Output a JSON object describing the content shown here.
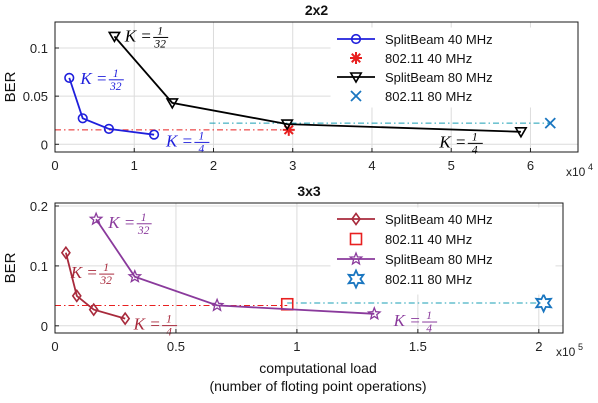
{
  "xlabel_line1": "computational load",
  "xlabel_line2": "(number of floting point operations)",
  "chart_data": [
    {
      "type": "line",
      "title": "2x2",
      "ylabel": "BER",
      "xlim": [
        0,
        6.6
      ],
      "ylim": [
        -0.008,
        0.127
      ],
      "xticks": [
        0,
        1,
        2,
        3,
        4,
        5,
        6
      ],
      "xtick_labels": [
        "0",
        "1",
        "2",
        "3",
        "4",
        "5",
        "6"
      ],
      "yticks": [
        0,
        0.05,
        0.1
      ],
      "ytick_labels": [
        "0",
        "0.05",
        "0.1"
      ],
      "x_multiplier": "x10",
      "x_exponent": "4",
      "grid": true,
      "legend_position": "top-right",
      "series": [
        {
          "name": "SplitBeam 40 MHz",
          "color": "#1f1fdc",
          "marker": "circle",
          "line": "solid",
          "x": [
            0.18,
            0.35,
            0.68,
            1.25
          ],
          "y": [
            0.069,
            0.027,
            0.016,
            0.01
          ]
        },
        {
          "name": "802.11 40 MHz",
          "color": "#e82020",
          "marker": "asterisk",
          "line": "none",
          "x": [
            2.95
          ],
          "y": [
            0.015
          ]
        },
        {
          "name": "SplitBeam 80 MHz",
          "color": "#000000",
          "marker": "triangle-down",
          "line": "solid",
          "x": [
            0.75,
            1.48,
            2.93,
            5.88
          ],
          "y": [
            0.112,
            0.043,
            0.021,
            0.013
          ]
        },
        {
          "name": "802.11 80 MHz",
          "color": "#1a76c0",
          "marker": "x",
          "line": "none",
          "x": [
            6.25
          ],
          "y": [
            0.022
          ]
        }
      ],
      "reference_lines": [
        {
          "color": "#e82020",
          "y": 0.015,
          "x": [
            0,
            2.95
          ]
        },
        {
          "color": "#1a9fb5",
          "y": 0.022,
          "x": [
            1.95,
            6.25
          ]
        }
      ],
      "annotations": [
        {
          "prefix": "K",
          "num": "1",
          "den": "32",
          "color": "#1f1fdc",
          "x": 0.32,
          "y": 0.068
        },
        {
          "prefix": "K",
          "num": "1",
          "den": "4",
          "color": "#1f1fdc",
          "x": 1.4,
          "y": 0.003
        },
        {
          "prefix": "K",
          "num": "1",
          "den": "32",
          "color": "#000000",
          "x": 0.88,
          "y": 0.112
        },
        {
          "prefix": "K",
          "num": "1",
          "den": "4",
          "color": "#000000",
          "x": 4.85,
          "y": 0.002
        }
      ]
    },
    {
      "type": "line",
      "title": "3x3",
      "ylabel": "BER",
      "xlim": [
        0,
        2.1
      ],
      "ylim": [
        -0.012,
        0.205
      ],
      "xticks": [
        0,
        0.5,
        1,
        1.5,
        2
      ],
      "xtick_labels": [
        "0",
        "0.5",
        "1",
        "1.5",
        "2"
      ],
      "yticks": [
        0,
        0.1,
        0.2
      ],
      "ytick_labels": [
        "0",
        "0.1",
        "0.2"
      ],
      "x_multiplier": "x10",
      "x_exponent": "5",
      "grid": true,
      "legend_position": "top-right",
      "series": [
        {
          "name": "SplitBeam 40 MHz",
          "color": "#a82a3c",
          "marker": "diamond",
          "line": "solid",
          "x": [
            0.045,
            0.09,
            0.16,
            0.29
          ],
          "y": [
            0.122,
            0.05,
            0.027,
            0.012
          ]
        },
        {
          "name": "802.11 40 MHz",
          "color": "#e82020",
          "marker": "square",
          "line": "none",
          "x": [
            0.96
          ],
          "y": [
            0.036
          ]
        },
        {
          "name": "SplitBeam 80 MHz",
          "color": "#8a3a9c",
          "marker": "star",
          "line": "solid",
          "x": [
            0.17,
            0.33,
            0.67,
            1.32
          ],
          "y": [
            0.178,
            0.082,
            0.034,
            0.02
          ]
        },
        {
          "name": "802.11 80 MHz",
          "color": "#1a76c0",
          "marker": "hexagram",
          "line": "none",
          "x": [
            2.02
          ],
          "y": [
            0.038
          ]
        }
      ],
      "reference_lines": [
        {
          "color": "#e82020",
          "y": 0.034,
          "x": [
            0,
            0.96
          ]
        },
        {
          "color": "#1a9fb5",
          "y": 0.038,
          "x": [
            0.96,
            2.02
          ]
        }
      ],
      "annotations": [
        {
          "prefix": "K",
          "num": "1",
          "den": "32",
          "color": "#8a3a9c",
          "x": 0.22,
          "y": 0.172
        },
        {
          "prefix": "K",
          "num": "1",
          "den": "32",
          "color": "#a82a3c",
          "x": 0.065,
          "y": 0.088
        },
        {
          "prefix": "K",
          "num": "1",
          "den": "4",
          "color": "#a82a3c",
          "x": 0.325,
          "y": 0.002
        },
        {
          "prefix": "K",
          "num": "1",
          "den": "4",
          "color": "#8a3a9c",
          "x": 1.4,
          "y": 0.008
        }
      ]
    }
  ]
}
